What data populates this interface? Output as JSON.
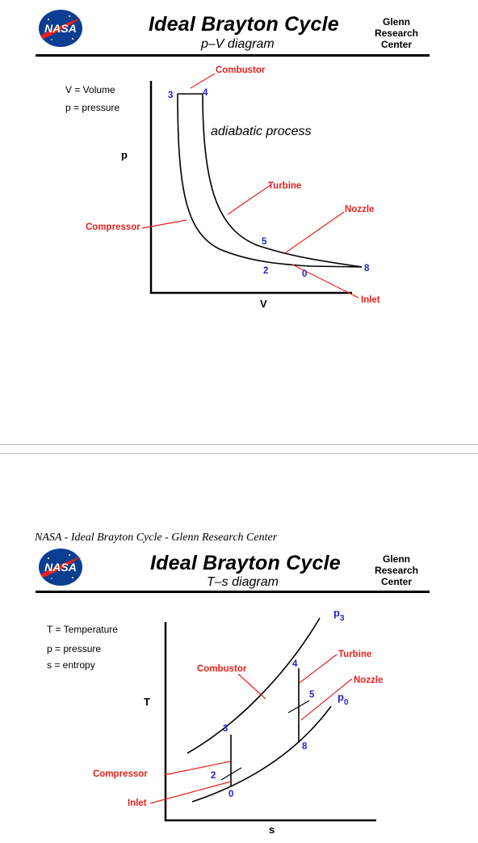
{
  "header": {
    "logo_text": "NASA",
    "title": "Ideal Brayton Cycle",
    "center": [
      "Glenn",
      "Research",
      "Center"
    ]
  },
  "pv": {
    "subtitle": "p–V diagram",
    "legend": [
      "V = Volume",
      "p = pressure"
    ],
    "y_axis_label": "p",
    "x_axis_label": "V",
    "process_note": "adiabatic process",
    "components": {
      "combustor": "Combustor",
      "turbine": "Turbine",
      "nozzle": "Nozzle",
      "compressor": "Compressor",
      "inlet": "Inlet"
    },
    "stations": {
      "s3": "3",
      "s4": "4",
      "s5": "5",
      "s2": "2",
      "s0": "0",
      "s8": "8"
    }
  },
  "caption": "NASA - Ideal Brayton Cycle - Glenn Research Center",
  "ts": {
    "subtitle": "T–s diagram",
    "legend": [
      "T = Temperature",
      "p = pressure",
      "s = entropy"
    ],
    "y_axis_label": "T",
    "x_axis_label": "s",
    "isobars": {
      "p3_base": "p",
      "p3_sub": "3",
      "p0_base": "p",
      "p0_sub": "0"
    },
    "components": {
      "combustor": "Combustor",
      "turbine": "Turbine",
      "nozzle": "Nozzle",
      "compressor": "Compressor",
      "inlet": "Inlet"
    },
    "stations": {
      "s3": "3",
      "s4": "4",
      "s5": "5",
      "s2": "2",
      "s0": "0",
      "s8": "8"
    }
  },
  "colors": {
    "component_label": "#e8211c",
    "station_label": "#1f1fd6",
    "nasa_blue": "#0b3d91"
  }
}
